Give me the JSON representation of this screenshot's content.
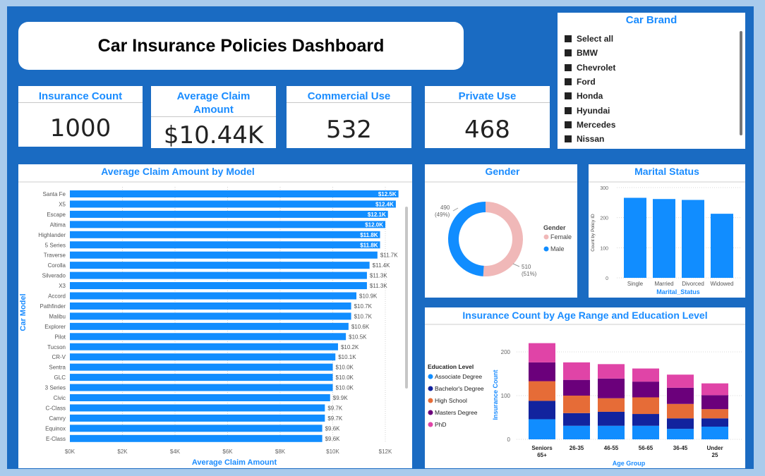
{
  "dashboard_title": "Car Insurance Policies Dashboard",
  "kpis": {
    "insurance_count": {
      "label": "Insurance Count",
      "value": "1000"
    },
    "avg_claim": {
      "label": "Average Claim Amount",
      "value": "$10.44K"
    },
    "commercial": {
      "label": "Commercial Use",
      "value": "532"
    },
    "private": {
      "label": "Private Use",
      "value": "468"
    }
  },
  "brand_slicer": {
    "title": "Car Brand",
    "items": [
      "Select all",
      "BMW",
      "Chevrolet",
      "Ford",
      "Honda",
      "Hyundai",
      "Mercedes",
      "Nissan"
    ]
  },
  "colors": {
    "frame": "#1a6bc2",
    "title_blue": "#1a8cff",
    "bar_blue": "#118dff",
    "female": "#f0b8b8",
    "male": "#118dff",
    "edu": [
      "#118dff",
      "#12239e",
      "#e66c37",
      "#6b007b",
      "#e044a7"
    ]
  },
  "chart_data": [
    {
      "id": "claim_by_model",
      "type": "bar",
      "orientation": "horizontal",
      "title": "Average Claim Amount by Model",
      "xlabel": "Average Claim Amount",
      "ylabel": "Car Model",
      "xlim": [
        0,
        12800
      ],
      "xticks": [
        "$0K",
        "$2K",
        "$4K",
        "$6K",
        "$8K",
        "$10K",
        "$12K"
      ],
      "categories": [
        "Santa Fe",
        "X5",
        "Escape",
        "Altima",
        "Highlander",
        "5 Series",
        "Traverse",
        "Corolla",
        "Silverado",
        "X3",
        "Accord",
        "Pathfinder",
        "Malibu",
        "Explorer",
        "Pilot",
        "Tucson",
        "CR-V",
        "Sentra",
        "GLC",
        "3 Series",
        "Civic",
        "C-Class",
        "Camry",
        "Equinox",
        "E-Class"
      ],
      "values": [
        12500,
        12400,
        12100,
        12000,
        11800,
        11800,
        11700,
        11400,
        11300,
        11300,
        10900,
        10700,
        10700,
        10600,
        10500,
        10200,
        10100,
        10000,
        10000,
        10000,
        9900,
        9700,
        9700,
        9600,
        9600
      ],
      "labels": [
        "$12.5K",
        "$12.4K",
        "$12.1K",
        "$12.0K",
        "$11.8K",
        "$11.8K",
        "$11.7K",
        "$11.4K",
        "$11.3K",
        "$11.3K",
        "$10.9K",
        "$10.7K",
        "$10.7K",
        "$10.6K",
        "$10.5K",
        "$10.2K",
        "$10.1K",
        "$10.0K",
        "$10.0K",
        "$10.0K",
        "$9.9K",
        "$9.7K",
        "$9.7K",
        "$9.6K",
        "$9.6K"
      ]
    },
    {
      "id": "gender",
      "type": "pie",
      "donut": true,
      "title": "Gender",
      "legend_title": "Gender",
      "categories": [
        "Female",
        "Male"
      ],
      "values": [
        510,
        490
      ],
      "labels": [
        {
          "value": "510",
          "pct": "(51%)"
        },
        {
          "value": "490",
          "pct": "(49%)"
        }
      ]
    },
    {
      "id": "marital",
      "type": "bar",
      "title": "Marital Status",
      "xlabel": "Marital_Status",
      "ylabel": "Count by Policy ID",
      "ylim": [
        0,
        300
      ],
      "yticks": [
        0,
        100,
        200,
        300
      ],
      "categories": [
        "Single",
        "Married",
        "Divorced",
        "Widowed"
      ],
      "values": [
        266,
        262,
        259,
        213
      ]
    },
    {
      "id": "age_education",
      "type": "bar",
      "stacked": true,
      "title": "Insurance Count by Age Range and Education Level",
      "xlabel": "Age Group",
      "ylabel": "Insurance Count",
      "ylim": [
        0,
        200
      ],
      "yticks": [
        0,
        100,
        200
      ],
      "legend_title": "Education Level",
      "categories": [
        "Seniors 65+",
        "26-35",
        "46-55",
        "56-65",
        "36-45",
        "Under 25"
      ],
      "series": [
        {
          "name": "Associate Degree",
          "values": [
            46,
            31,
            31,
            31,
            24,
            29
          ]
        },
        {
          "name": "Bachelor's Degree",
          "values": [
            42,
            29,
            32,
            27,
            24,
            19
          ]
        },
        {
          "name": "High School",
          "values": [
            45,
            40,
            31,
            38,
            33,
            21
          ]
        },
        {
          "name": "Masters Degree",
          "values": [
            43,
            36,
            45,
            36,
            37,
            32
          ]
        },
        {
          "name": "PhD",
          "values": [
            44,
            40,
            33,
            30,
            30,
            27
          ]
        }
      ]
    }
  ]
}
